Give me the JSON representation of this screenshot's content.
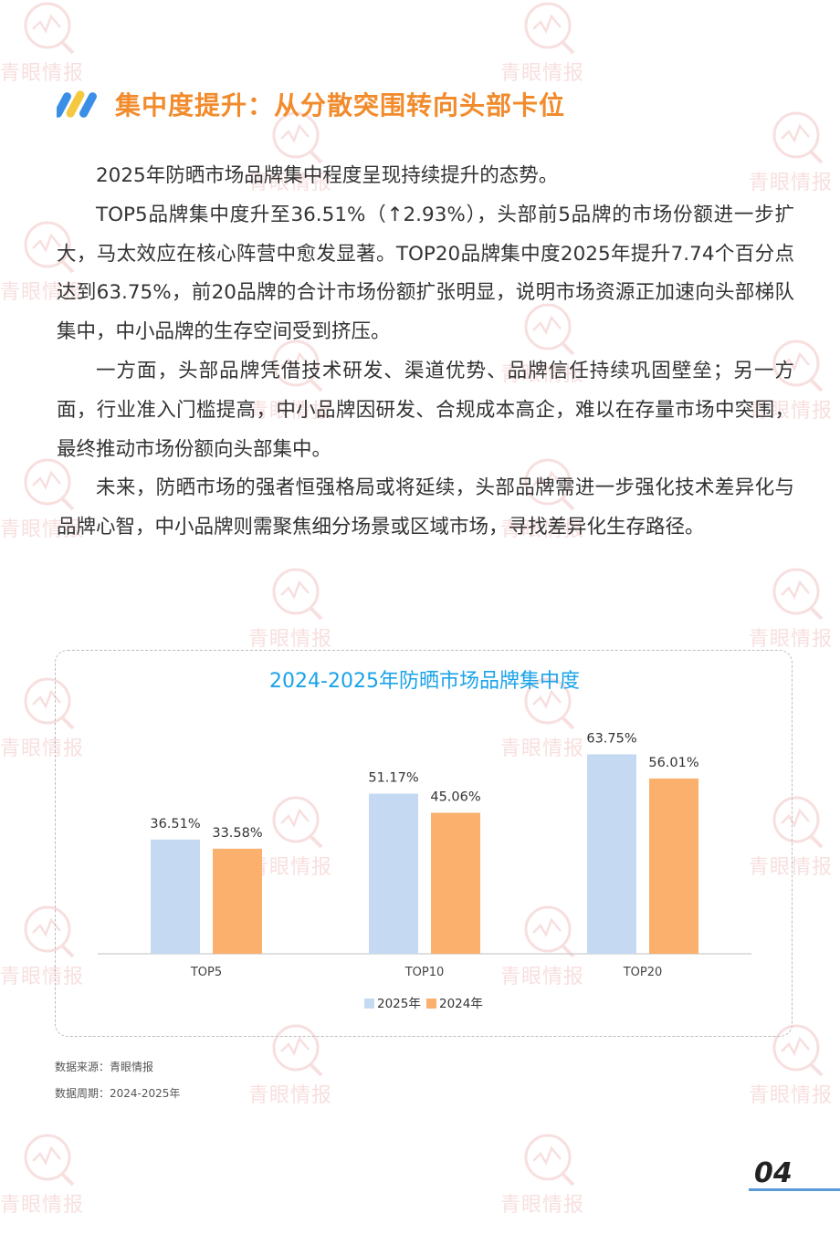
{
  "watermark": {
    "text": "青眼情报"
  },
  "section": {
    "title": "集中度提升：从分散突围转向头部卡位",
    "colors": {
      "accent": "#f28b2c",
      "logo_blue": "#3a8ee6",
      "logo_yellow": "#f5c842"
    }
  },
  "paragraphs": [
    "2025年防晒市场品牌集中程度呈现持续提升的态势。",
    "TOP5品牌集中度升至36.51%（↑2.93%），头部前5品牌的市场份额进一步扩大，马太效应在核心阵营中愈发显著。TOP20品牌集中度2025年提升7.74个百分点达到63.75%，前20品牌的合计市场份额扩张明显，说明市场资源正加速向头部梯队集中，中小品牌的生存空间受到挤压。",
    "一方面，头部品牌凭借技术研发、渠道优势、品牌信任持续巩固壁垒；另一方面，行业准入门槛提高，中小品牌因研发、合规成本高企，难以在存量市场中突围，最终推动市场份额向头部集中。",
    "未来，防晒市场的强者恒强格局或将延续，头部品牌需进一步强化技术差异化与品牌心智，中小品牌则需聚焦细分场景或区域市场，寻找差异化生存路径。"
  ],
  "chart_data": {
    "type": "bar",
    "title": "2024-2025年防晒市场品牌集中度",
    "categories": [
      "TOP5",
      "TOP10",
      "TOP20"
    ],
    "series": [
      {
        "name": "2025年",
        "values": [
          36.51,
          51.17,
          63.75
        ],
        "labels": [
          "36.51%",
          "51.17%",
          "63.75%"
        ],
        "color": "#c5daf2"
      },
      {
        "name": "2024年",
        "values": [
          33.58,
          45.06,
          56.01
        ],
        "labels": [
          "33.58%",
          "45.06%",
          "56.01%"
        ],
        "color": "#fbb06e"
      }
    ],
    "ylim": [
      0,
      70
    ],
    "legend": "bottom-center",
    "title_color": "#1aa3e8"
  },
  "source": {
    "data_source": "数据来源：青眼情报",
    "data_period": "数据周期：2024-2025年"
  },
  "page_number": "04"
}
